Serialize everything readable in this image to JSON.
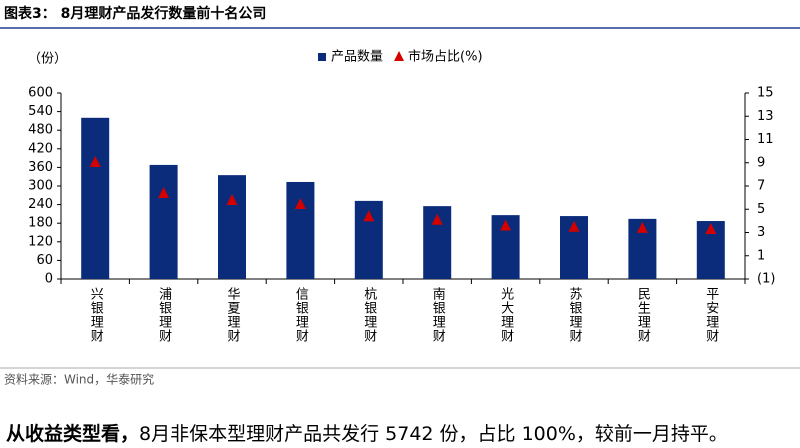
{
  "header": {
    "title": "图表3： 8月理财产品发行数量前十名公司"
  },
  "chart_data": {
    "type": "bar_line_dual",
    "y_label": "（份）",
    "categories": [
      "兴银理财",
      "浦银理财",
      "华夏理财",
      "信银理财",
      "杭银理财",
      "南银理财",
      "光大理财",
      "苏银理财",
      "民生理财",
      "平安理财"
    ],
    "series": [
      {
        "name": "产品数量",
        "color": "#0b2c7a",
        "marker": "bar",
        "values": [
          520,
          368,
          335,
          313,
          252,
          235,
          206,
          203,
          194,
          187
        ]
      },
      {
        "name": "市场占比(%)",
        "color": "#d40000",
        "marker": "triangle",
        "axis": "y2",
        "values": [
          9.06,
          6.4,
          5.8,
          5.45,
          4.4,
          4.1,
          3.6,
          3.5,
          3.4,
          3.3
        ]
      }
    ],
    "ylim": [
      0,
      600
    ],
    "yticks": [
      0,
      60,
      120,
      180,
      240,
      300,
      360,
      420,
      480,
      540,
      600
    ],
    "y2lim": [
      -1,
      15
    ],
    "y2ticks": [
      {
        "value": -1,
        "label": "(1)"
      },
      1,
      3,
      5,
      7,
      9,
      11,
      13,
      15
    ],
    "grid": false
  },
  "source": "资料来源：Wind，华泰研究",
  "paragraph": {
    "lead": "从收益类型看，",
    "body": "8月非保本型理财产品共发行 5742 份，占比 100%，较前一月持平。"
  }
}
